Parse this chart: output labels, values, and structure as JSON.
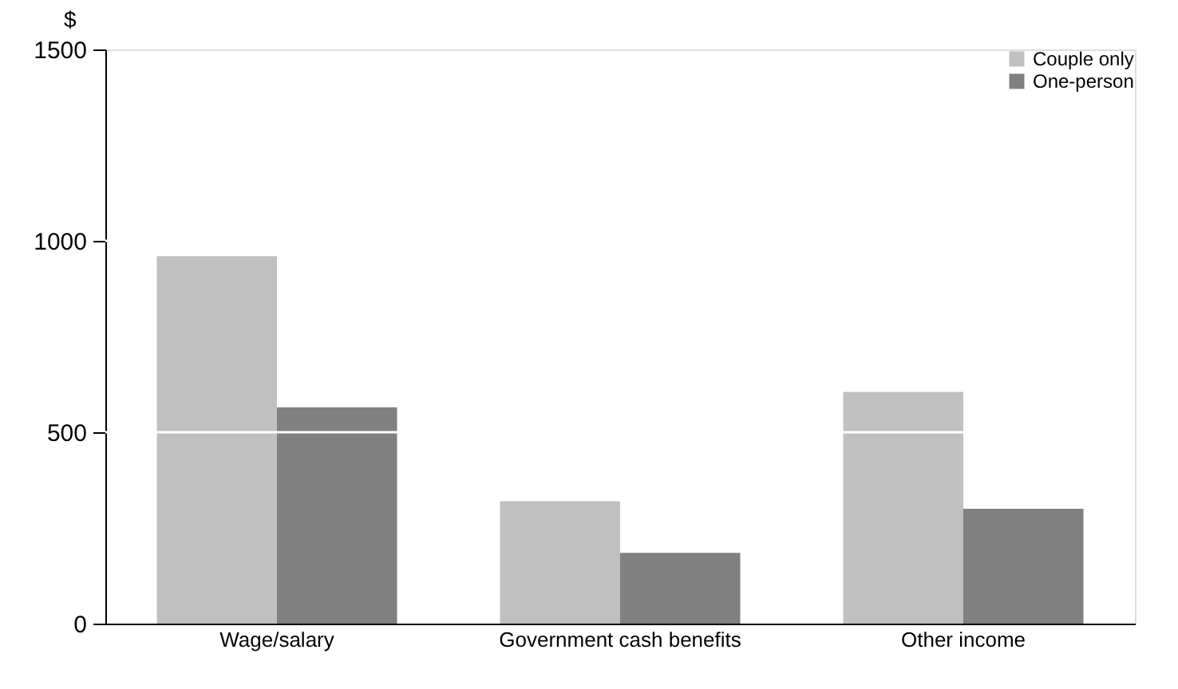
{
  "chart_data": {
    "type": "bar",
    "ylabel": "$",
    "categories": [
      "Wage/salary",
      "Government cash benefits",
      "Other income"
    ],
    "series": [
      {
        "name": "Couple only",
        "color": "#c0c0c0",
        "values": [
          960,
          320,
          605
        ]
      },
      {
        "name": "One-person",
        "color": "#808080",
        "values": [
          565,
          185,
          300
        ]
      }
    ],
    "ylim": [
      0,
      1500
    ],
    "yticks": [
      0,
      500,
      1000,
      1500
    ],
    "grid": "y",
    "legend": "top right"
  }
}
